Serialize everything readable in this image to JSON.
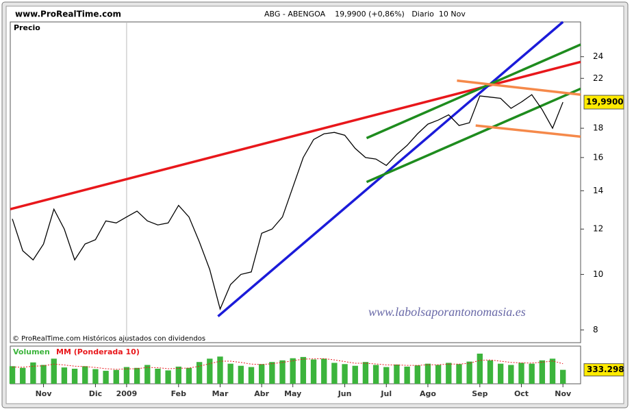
{
  "chart_data": {
    "type": "line",
    "site": "www.ProRealTime.com",
    "title": "ABG - ABENGOA    19,9900 (+0,86%)   Diario  10 Nov",
    "ylabel": "Precio",
    "watermark": "www.labolsaporantonomasia.es",
    "footnote": "© ProRealTime.com Históricos ajustados con dividendos",
    "categories": [
      null,
      null,
      null,
      "Nov",
      null,
      null,
      null,
      null,
      "Dic",
      null,
      null,
      "2009",
      null,
      null,
      null,
      null,
      "Feb",
      null,
      null,
      null,
      "Mar",
      null,
      null,
      null,
      "Abr",
      null,
      null,
      "May",
      null,
      null,
      null,
      null,
      "Jun",
      null,
      null,
      null,
      "Jul",
      null,
      null,
      null,
      "Ago",
      null,
      null,
      null,
      null,
      "Sep",
      null,
      null,
      null,
      "Oct",
      null,
      null,
      null,
      "Nov"
    ],
    "xlim": [
      -0.2,
      54.7
    ],
    "log_y": true,
    "ylim": [
      7.6,
      27.6
    ],
    "yticks": [
      8,
      10,
      12,
      14,
      16,
      18,
      22,
      24
    ],
    "series": [
      {
        "name": "Precio",
        "color": "#000000",
        "values": [
          12.5,
          11.0,
          10.6,
          11.3,
          13.0,
          12.0,
          10.6,
          11.3,
          11.5,
          12.4,
          12.3,
          12.6,
          12.9,
          12.4,
          12.2,
          12.3,
          13.2,
          12.6,
          11.4,
          10.2,
          8.7,
          9.6,
          10.0,
          10.1,
          11.8,
          12.0,
          12.6,
          14.2,
          16.0,
          17.2,
          17.6,
          17.7,
          17.5,
          16.6,
          16.0,
          15.9,
          15.5,
          16.2,
          16.8,
          17.6,
          18.3,
          18.6,
          19.0,
          18.2,
          18.4,
          20.5,
          20.4,
          20.3,
          19.5,
          20.0,
          20.6,
          19.4,
          18.0,
          19.99
        ],
        "last_value_label": "19,9900"
      }
    ],
    "trendlines": [
      {
        "color": "#e8171b",
        "x": [
          -0.2,
          54.7
        ],
        "y": [
          13.0,
          23.5
        ]
      },
      {
        "color": "#1b1bd9",
        "x": [
          19.8,
          53.0
        ],
        "y": [
          8.45,
          27.6
        ]
      },
      {
        "color": "#1e8c1e",
        "x": [
          34.1,
          54.7
        ],
        "y": [
          17.3,
          25.2
        ]
      },
      {
        "color": "#1e8c1e",
        "x": [
          34.1,
          54.7
        ],
        "y": [
          14.5,
          21.1
        ]
      },
      {
        "color": "#f5894a",
        "x": [
          42.8,
          54.7
        ],
        "y": [
          21.8,
          20.6
        ]
      },
      {
        "color": "#f5894a",
        "x": [
          44.6,
          54.7
        ],
        "y": [
          18.2,
          17.4
        ]
      }
    ],
    "volume": {
      "ylim": [
        0,
        900000
      ],
      "series": [
        {
          "name": "Volumen",
          "color": "#3cb43c",
          "values": [
            420000,
            380000,
            510000,
            450000,
            600000,
            390000,
            360000,
            420000,
            350000,
            310000,
            330000,
            400000,
            380000,
            450000,
            360000,
            320000,
            410000,
            380000,
            520000,
            600000,
            650000,
            480000,
            430000,
            400000,
            470000,
            520000,
            560000,
            610000,
            640000,
            580000,
            600000,
            500000,
            470000,
            430000,
            520000,
            450000,
            400000,
            460000,
            410000,
            440000,
            480000,
            450000,
            500000,
            470000,
            530000,
            720000,
            560000,
            480000,
            450000,
            500000,
            480000,
            560000,
            600000,
            333298
          ],
          "value_labels": {
            "53": "333.298"
          }
        },
        {
          "name": "MM (Ponderada 10)",
          "color": "#e8171b",
          "values": [
            400000,
            395000,
            420000,
            430000,
            470000,
            450000,
            420000,
            410000,
            390000,
            360000,
            345000,
            355000,
            360000,
            390000,
            385000,
            360000,
            370000,
            375000,
            420000,
            480000,
            540000,
            540000,
            510000,
            470000,
            460000,
            480000,
            510000,
            550000,
            590000,
            595000,
            600000,
            570000,
            530000,
            490000,
            490000,
            475000,
            450000,
            450000,
            440000,
            440000,
            455000,
            455000,
            470000,
            470000,
            490000,
            560000,
            570000,
            540000,
            510000,
            500000,
            495000,
            515000,
            545000,
            480000
          ]
        }
      ]
    }
  }
}
